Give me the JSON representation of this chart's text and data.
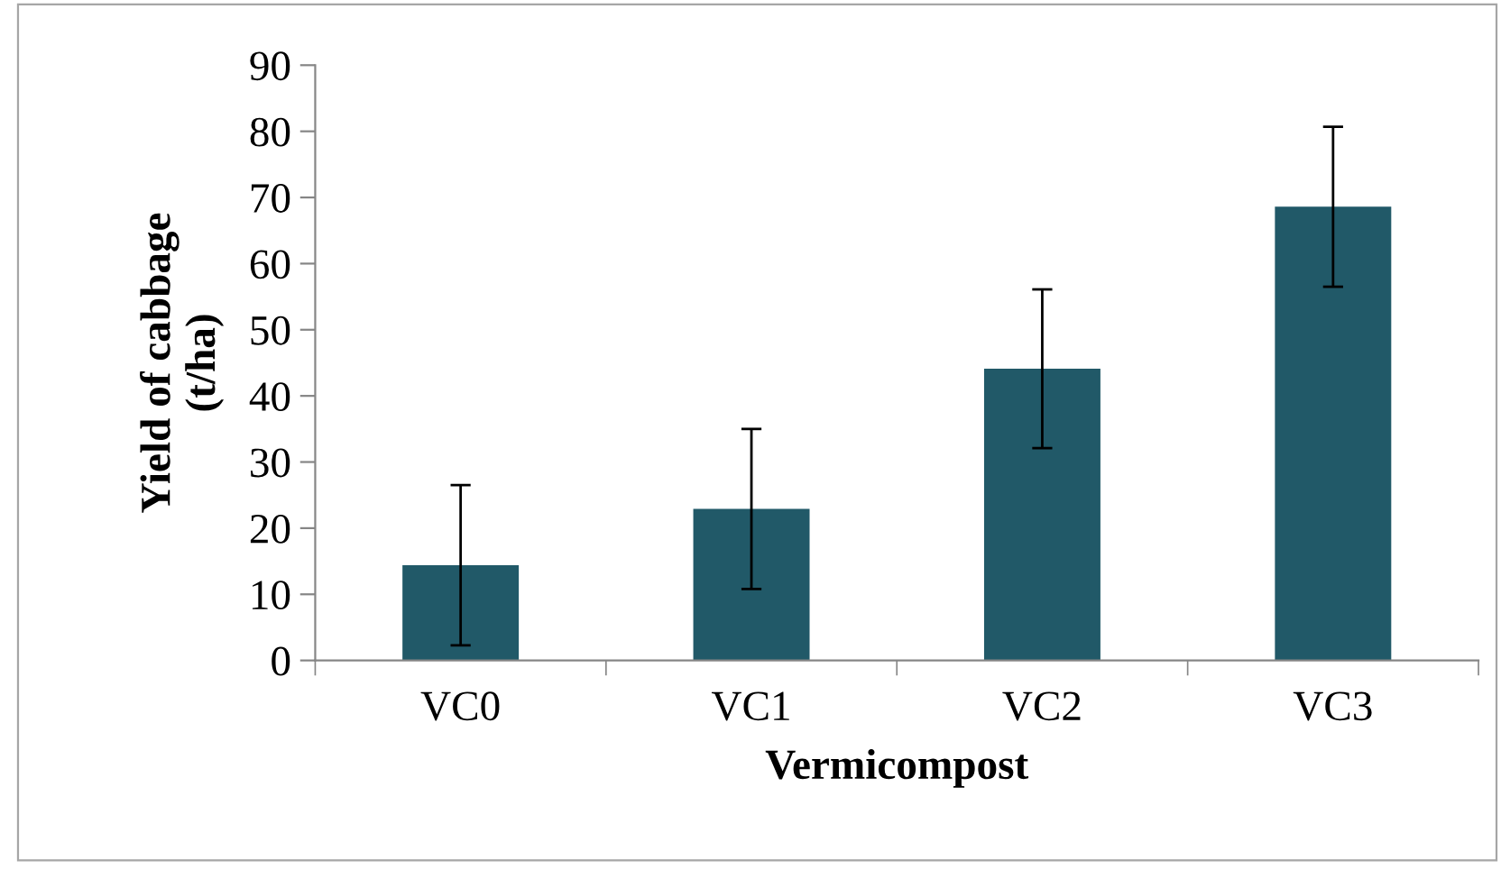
{
  "chart_data": {
    "type": "bar",
    "xlabel": "Vermicompost",
    "ylabel": "Yield of cabbage\n(t/ha)",
    "categories": [
      "VC0",
      "VC1",
      "VC2",
      "VC3"
    ],
    "values": [
      14.4,
      22.9,
      44.1,
      68.6
    ],
    "errors": [
      12.1,
      12.1,
      12,
      12.1
    ],
    "color": "#215968",
    "ylim": [
      0,
      90
    ],
    "yticks": [
      0,
      10,
      20,
      30,
      40,
      50,
      60,
      70,
      80,
      90
    ],
    "grid": false,
    "legend": false
  }
}
